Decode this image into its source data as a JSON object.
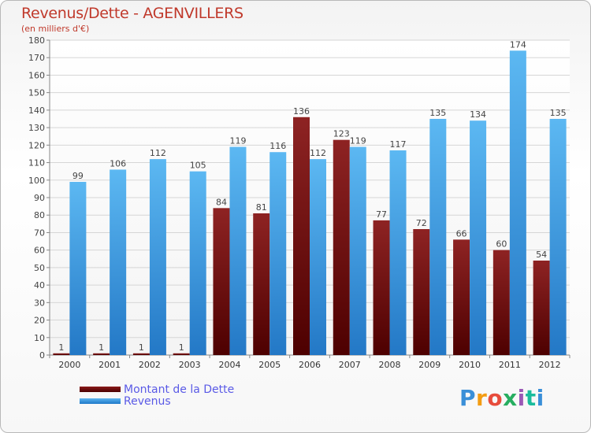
{
  "chart_data": {
    "type": "bar",
    "title": "Revenus/Dette - AGENVILLERS",
    "subtitle": "(en milliers d'€)",
    "categories": [
      "2000",
      "2001",
      "2002",
      "2003",
      "2004",
      "2005",
      "2006",
      "2007",
      "2008",
      "2009",
      "2010",
      "2011",
      "2012"
    ],
    "series": [
      {
        "name": "Montant de la Dette",
        "color": "#7a1010",
        "values": [
          1,
          1,
          1,
          1,
          84,
          81,
          136,
          123,
          77,
          72,
          66,
          60,
          54
        ]
      },
      {
        "name": "Revenus",
        "color": "#3a97e0",
        "values": [
          99,
          106,
          112,
          105,
          119,
          116,
          112,
          119,
          117,
          135,
          134,
          174,
          135
        ]
      }
    ],
    "ylim": [
      0,
      180
    ],
    "yticks": [
      0,
      10,
      20,
      30,
      40,
      50,
      60,
      70,
      80,
      90,
      100,
      110,
      120,
      130,
      140,
      150,
      160,
      170,
      180
    ],
    "xlabel": "",
    "ylabel": "",
    "grid": true,
    "legend": "bottom-left"
  },
  "logo": {
    "text": "Proxiti"
  }
}
